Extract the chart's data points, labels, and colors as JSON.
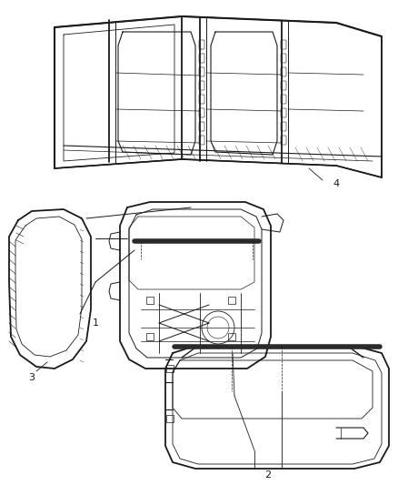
{
  "bg_color": "#ffffff",
  "fig_width": 4.38,
  "fig_height": 5.33,
  "dpi": 100,
  "line_color": "#1a1a1a",
  "label_fontsize": 8,
  "leader_lw": 0.6,
  "part_lw": 1.1
}
